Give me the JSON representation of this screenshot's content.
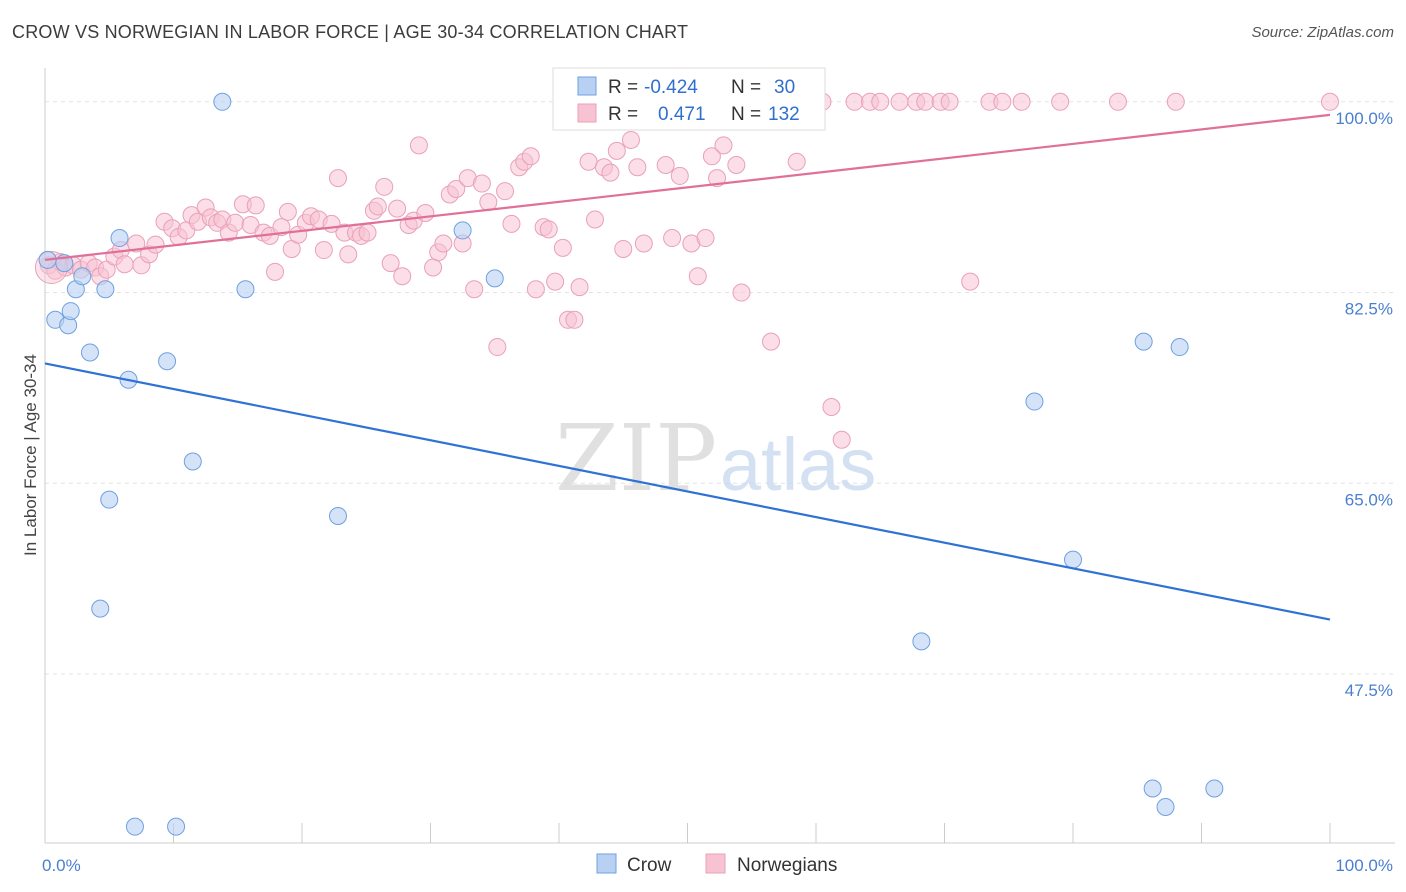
{
  "title": "CROW VS NORWEGIAN IN LABOR FORCE | AGE 30-34 CORRELATION CHART",
  "source": "Source: ZipAtlas.com",
  "watermark": {
    "zip": "ZIP",
    "atlas": "atlas"
  },
  "legend_top": {
    "rows": [
      {
        "r_label": "R =",
        "r_value": "-0.424",
        "n_label": "N =",
        "n_value": "30"
      },
      {
        "r_label": "R =",
        "r_value": "0.471",
        "n_label": "N =",
        "n_value": "132"
      }
    ]
  },
  "chart_data": {
    "type": "scatter",
    "title": "CROW VS NORWEGIAN IN LABOR FORCE | AGE 30-34 CORRELATION CHART",
    "xlabel": "",
    "ylabel": "In Labor Force | Age 30-34",
    "xlim": [
      0,
      100
    ],
    "ylim": [
      32,
      102
    ],
    "x_tick_labels": [
      "0.0%",
      "100.0%"
    ],
    "y_ticks": [
      47.5,
      65.0,
      82.5,
      100.0
    ],
    "y_tick_labels": [
      "47.5%",
      "65.0%",
      "82.5%",
      "100.0%"
    ],
    "grid": true,
    "legend_position": "bottom-center",
    "colors": {
      "crow": "#6fa1e0",
      "crow_fill": "#b8d1f3",
      "crow_line": "#2f72d6",
      "norwegian": "#e9a1b8",
      "norwegian_fill": "#f7c3d3",
      "norwegian_line": "#e0709a"
    },
    "series": [
      {
        "name": "Crow",
        "R": -0.424,
        "N": 30,
        "trend": {
          "x": [
            0,
            100
          ],
          "y": [
            76.0,
            52.5
          ]
        },
        "points": [
          [
            0.2,
            85.5
          ],
          [
            0.8,
            80.0
          ],
          [
            1.5,
            85.2
          ],
          [
            1.8,
            79.5
          ],
          [
            2.0,
            80.8
          ],
          [
            2.4,
            82.8
          ],
          [
            2.9,
            84.0
          ],
          [
            3.5,
            77.0
          ],
          [
            4.7,
            82.8
          ],
          [
            5.0,
            63.5
          ],
          [
            5.8,
            87.5
          ],
          [
            4.3,
            53.5
          ],
          [
            6.5,
            74.5
          ],
          [
            7.0,
            33.5
          ],
          [
            9.5,
            76.2
          ],
          [
            10.2,
            33.5
          ],
          [
            11.5,
            67.0
          ],
          [
            13.8,
            100.0
          ],
          [
            15.6,
            82.8
          ],
          [
            22.8,
            62.0
          ],
          [
            32.5,
            88.2
          ],
          [
            35.0,
            83.8
          ],
          [
            80.0,
            58.0
          ],
          [
            88.3,
            77.5
          ],
          [
            77.0,
            72.5
          ],
          [
            85.5,
            78.0
          ],
          [
            68.2,
            50.5
          ],
          [
            86.2,
            37.0
          ],
          [
            87.2,
            35.3
          ],
          [
            91.0,
            37.0
          ]
        ]
      },
      {
        "name": "Norwegians",
        "R": 0.471,
        "N": 132,
        "trend": {
          "x": [
            0,
            100
          ],
          "y": [
            85.5,
            98.8
          ]
        },
        "points": [
          [
            0.3,
            85.0
          ],
          [
            0.8,
            84.5
          ],
          [
            1.2,
            85.3
          ],
          [
            1.6,
            84.8
          ],
          [
            2.2,
            85.0
          ],
          [
            2.8,
            84.6
          ],
          [
            3.4,
            85.2
          ],
          [
            3.9,
            84.8
          ],
          [
            4.3,
            84.0
          ],
          [
            4.8,
            84.6
          ],
          [
            5.4,
            85.8
          ],
          [
            5.9,
            86.4
          ],
          [
            6.2,
            85.1
          ],
          [
            7.1,
            87.0
          ],
          [
            7.5,
            85.0
          ],
          [
            8.1,
            86.0
          ],
          [
            8.6,
            86.9
          ],
          [
            9.3,
            89.0
          ],
          [
            9.9,
            88.4
          ],
          [
            10.4,
            87.6
          ],
          [
            11.0,
            88.2
          ],
          [
            11.4,
            89.6
          ],
          [
            11.9,
            89.0
          ],
          [
            12.5,
            90.3
          ],
          [
            12.9,
            89.4
          ],
          [
            13.4,
            88.9
          ],
          [
            13.8,
            89.2
          ],
          [
            14.3,
            88.0
          ],
          [
            14.8,
            88.9
          ],
          [
            15.4,
            90.6
          ],
          [
            16.0,
            88.7
          ],
          [
            16.4,
            90.5
          ],
          [
            17.0,
            88.0
          ],
          [
            17.5,
            87.7
          ],
          [
            17.9,
            84.4
          ],
          [
            18.4,
            88.5
          ],
          [
            18.9,
            89.9
          ],
          [
            19.2,
            86.5
          ],
          [
            19.7,
            87.8
          ],
          [
            20.3,
            88.9
          ],
          [
            20.7,
            89.5
          ],
          [
            21.3,
            89.2
          ],
          [
            21.7,
            86.4
          ],
          [
            22.3,
            88.8
          ],
          [
            22.8,
            93.0
          ],
          [
            23.3,
            88.0
          ],
          [
            23.6,
            86.0
          ],
          [
            24.2,
            88.0
          ],
          [
            24.6,
            87.7
          ],
          [
            25.1,
            88.0
          ],
          [
            25.6,
            90.0
          ],
          [
            25.9,
            90.4
          ],
          [
            26.4,
            92.2
          ],
          [
            26.9,
            85.2
          ],
          [
            27.4,
            90.2
          ],
          [
            27.8,
            84.0
          ],
          [
            28.3,
            88.7
          ],
          [
            28.7,
            89.1
          ],
          [
            29.1,
            96.0
          ],
          [
            29.6,
            89.8
          ],
          [
            30.2,
            84.8
          ],
          [
            30.6,
            86.2
          ],
          [
            31.0,
            87.0
          ],
          [
            31.5,
            91.5
          ],
          [
            32.0,
            92.0
          ],
          [
            32.5,
            87.0
          ],
          [
            32.9,
            93.0
          ],
          [
            33.4,
            82.8
          ],
          [
            34.0,
            92.5
          ],
          [
            34.5,
            90.8
          ],
          [
            35.2,
            77.5
          ],
          [
            35.8,
            91.8
          ],
          [
            36.3,
            88.8
          ],
          [
            36.9,
            94.0
          ],
          [
            37.3,
            94.5
          ],
          [
            37.8,
            95.0
          ],
          [
            38.2,
            82.8
          ],
          [
            38.8,
            88.5
          ],
          [
            39.2,
            88.3
          ],
          [
            39.7,
            83.5
          ],
          [
            40.3,
            86.6
          ],
          [
            40.7,
            80.0
          ],
          [
            41.2,
            80.0
          ],
          [
            41.6,
            83.0
          ],
          [
            42.3,
            94.5
          ],
          [
            42.8,
            89.2
          ],
          [
            43.5,
            94.0
          ],
          [
            44.0,
            93.5
          ],
          [
            44.5,
            95.5
          ],
          [
            45.0,
            86.5
          ],
          [
            45.6,
            96.5
          ],
          [
            46.1,
            94.0
          ],
          [
            46.6,
            87.0
          ],
          [
            47.2,
            100.0
          ],
          [
            47.7,
            100.0
          ],
          [
            48.3,
            94.2
          ],
          [
            48.8,
            87.5
          ],
          [
            49.4,
            93.2
          ],
          [
            49.8,
            100.0
          ],
          [
            50.3,
            87.0
          ],
          [
            50.8,
            84.0
          ],
          [
            51.4,
            87.5
          ],
          [
            51.9,
            95.0
          ],
          [
            52.3,
            93.0
          ],
          [
            52.8,
            96.0
          ],
          [
            53.3,
            100.0
          ],
          [
            53.8,
            94.2
          ],
          [
            54.2,
            82.5
          ],
          [
            55.0,
            100.0
          ],
          [
            55.6,
            100.0
          ],
          [
            56.5,
            78.0
          ],
          [
            57.0,
            100.0
          ],
          [
            58.5,
            94.5
          ],
          [
            60.5,
            100.0
          ],
          [
            61.2,
            72.0
          ],
          [
            62.0,
            69.0
          ],
          [
            63.0,
            100.0
          ],
          [
            64.2,
            100.0
          ],
          [
            65.0,
            100.0
          ],
          [
            66.5,
            100.0
          ],
          [
            67.8,
            100.0
          ],
          [
            68.5,
            100.0
          ],
          [
            69.7,
            100.0
          ],
          [
            70.4,
            100.0
          ],
          [
            72.0,
            83.5
          ],
          [
            73.5,
            100.0
          ],
          [
            74.5,
            100.0
          ],
          [
            76.0,
            100.0
          ],
          [
            79.0,
            100.0
          ],
          [
            83.5,
            100.0
          ],
          [
            88.0,
            100.0
          ],
          [
            100.0,
            100.0
          ]
        ]
      }
    ]
  },
  "bottom_legend": [
    {
      "label": "Crow"
    },
    {
      "label": "Norwegians"
    }
  ]
}
